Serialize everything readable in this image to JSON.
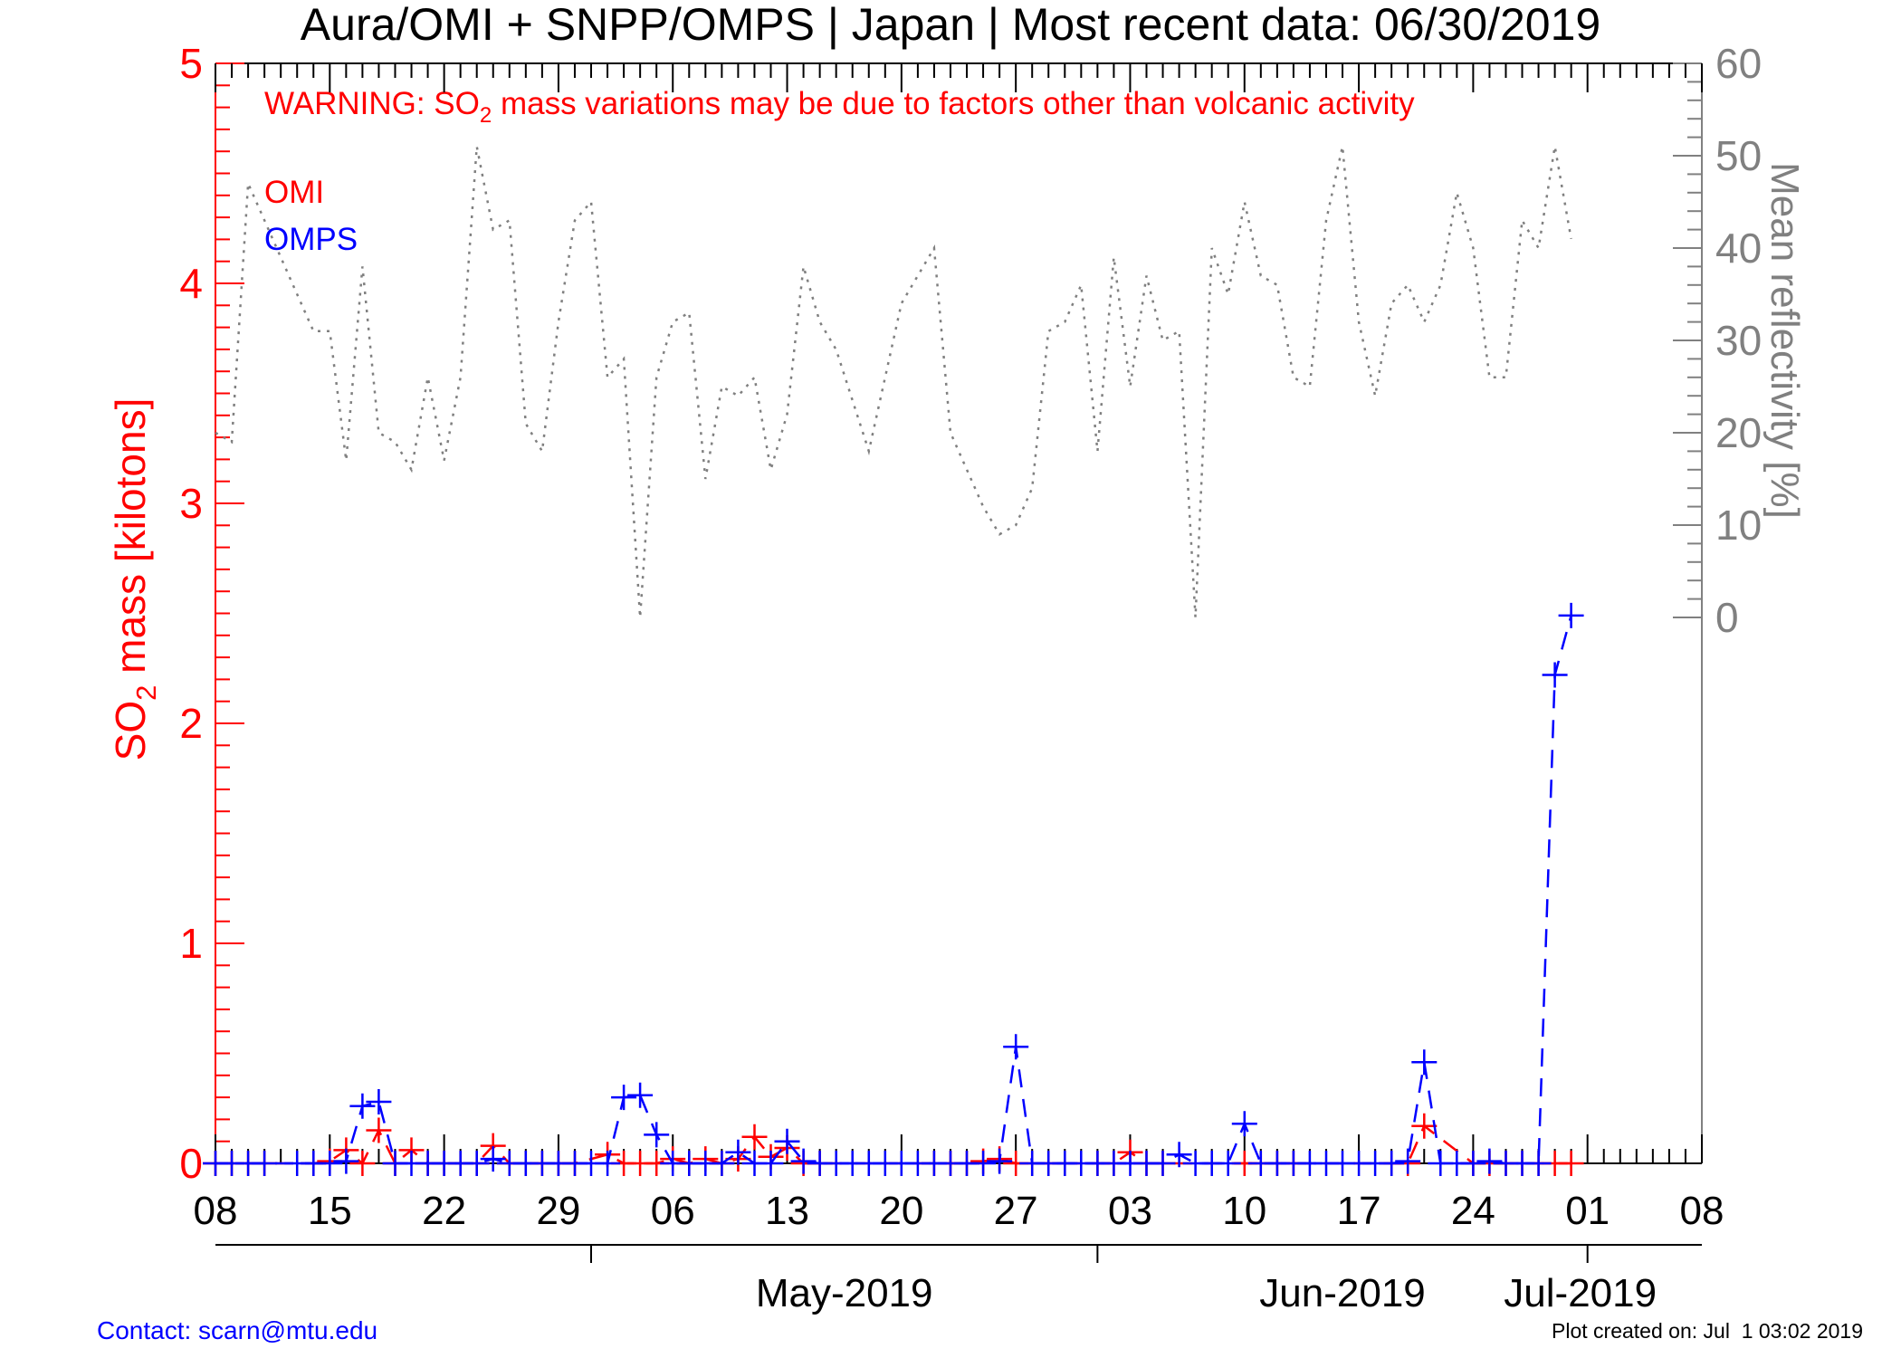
{
  "chart_data": {
    "type": "line",
    "title": "Aura/OMI + SNPP/OMPS | Japan | Most recent data: 06/30/2019",
    "warning": {
      "prefix": "WARNING: SO",
      "subscript": "2",
      "suffix": " mass variations may be due to factors other than volcanic activity"
    },
    "left_axis": {
      "label_prefix": "SO",
      "label_subscript": "2",
      "label_suffix": " mass [kilotons]",
      "ylim": [
        0,
        5
      ],
      "ticks": [
        "0",
        "1",
        "2",
        "3",
        "4",
        "5"
      ]
    },
    "right_axis": {
      "label": "Mean reflectivity [%]",
      "ylim": [
        0,
        60
      ],
      "ticks": [
        "0",
        "10",
        "20",
        "30",
        "40",
        "50",
        "60"
      ]
    },
    "x_axis": {
      "day_ticks": [
        "08",
        "15",
        "22",
        "29",
        "06",
        "13",
        "20",
        "27",
        "03",
        "10",
        "17",
        "24",
        "01",
        "08"
      ],
      "month_labels": [
        "May-2019",
        "Jun-2019",
        "Jul-2019"
      ]
    },
    "legend": [
      "OMI",
      "OMPS"
    ],
    "colors": {
      "omi": "#ff0000",
      "omps": "#0000ff",
      "reflectivity": "#808080",
      "axis": "#000000"
    },
    "series": [
      {
        "name": "OMI",
        "x": [
          "2019-04-08",
          "2019-04-09",
          "2019-04-10",
          "2019-04-11",
          "2019-04-14",
          "2019-04-15",
          "2019-04-16",
          "2019-04-17",
          "2019-04-18",
          "2019-04-19",
          "2019-04-20",
          "2019-04-21",
          "2019-04-22",
          "2019-04-23",
          "2019-04-24",
          "2019-04-25",
          "2019-04-26",
          "2019-04-27",
          "2019-04-28",
          "2019-04-29",
          "2019-04-30",
          "2019-05-02",
          "2019-05-03",
          "2019-05-04",
          "2019-05-05",
          "2019-05-06",
          "2019-05-07",
          "2019-05-08",
          "2019-05-09",
          "2019-05-10",
          "2019-05-11",
          "2019-05-12",
          "2019-05-13",
          "2019-05-14",
          "2019-05-15",
          "2019-05-22",
          "2019-05-23",
          "2019-05-24",
          "2019-05-25",
          "2019-05-26",
          "2019-05-27",
          "2019-05-28",
          "2019-05-29",
          "2019-05-30",
          "2019-06-01",
          "2019-06-02",
          "2019-06-03",
          "2019-06-04",
          "2019-06-05",
          "2019-06-10",
          "2019-06-11",
          "2019-06-12",
          "2019-06-13",
          "2019-06-19",
          "2019-06-20",
          "2019-06-21",
          "2019-06-24",
          "2019-06-25",
          "2019-06-26",
          "2019-06-27",
          "2019-06-28",
          "2019-06-29",
          "2019-06-30"
        ],
        "values": [
          0.0,
          0.0,
          0.0,
          0.0,
          0.0,
          0.01,
          0.06,
          0.0,
          0.15,
          0.0,
          0.06,
          0.0,
          0.0,
          0.0,
          0.0,
          0.08,
          0.0,
          0.0,
          0.0,
          0.0,
          0.0,
          0.04,
          0.0,
          0.0,
          0.0,
          0.02,
          0.0,
          0.02,
          0.0,
          0.02,
          0.12,
          0.03,
          0.07,
          0.0,
          0.0,
          0.0,
          0.0,
          0.0,
          0.01,
          0.02,
          0.0,
          0.0,
          0.0,
          0.0,
          0.0,
          0.0,
          0.05,
          0.0,
          0.0,
          0.0,
          0.0,
          0.0,
          0.0,
          0.0,
          0.0,
          0.17,
          0.0,
          0.0,
          0.0,
          0.0,
          0.0,
          0.0,
          0.0
        ]
      },
      {
        "name": "OMPS",
        "x": [
          "2019-04-08",
          "2019-04-09",
          "2019-04-10",
          "2019-04-11",
          "2019-04-13",
          "2019-04-14",
          "2019-04-15",
          "2019-04-16",
          "2019-04-17",
          "2019-04-18",
          "2019-04-19",
          "2019-04-20",
          "2019-04-21",
          "2019-04-22",
          "2019-04-23",
          "2019-04-24",
          "2019-04-25",
          "2019-04-26",
          "2019-04-27",
          "2019-04-28",
          "2019-04-29",
          "2019-04-30",
          "2019-05-01",
          "2019-05-02",
          "2019-05-03",
          "2019-05-04",
          "2019-05-05",
          "2019-05-06",
          "2019-05-07",
          "2019-05-08",
          "2019-05-09",
          "2019-05-10",
          "2019-05-11",
          "2019-05-12",
          "2019-05-13",
          "2019-05-14",
          "2019-05-15",
          "2019-05-16",
          "2019-05-17",
          "2019-05-18",
          "2019-05-19",
          "2019-05-20",
          "2019-05-21",
          "2019-05-22",
          "2019-05-23",
          "2019-05-24",
          "2019-05-25",
          "2019-05-26",
          "2019-05-27",
          "2019-05-28",
          "2019-05-29",
          "2019-05-30",
          "2019-05-31",
          "2019-06-01",
          "2019-06-02",
          "2019-06-03",
          "2019-06-04",
          "2019-06-05",
          "2019-06-06",
          "2019-06-07",
          "2019-06-08",
          "2019-06-09",
          "2019-06-10",
          "2019-06-11",
          "2019-06-12",
          "2019-06-13",
          "2019-06-14",
          "2019-06-15",
          "2019-06-16",
          "2019-06-17",
          "2019-06-18",
          "2019-06-19",
          "2019-06-20",
          "2019-06-21",
          "2019-06-22",
          "2019-06-23",
          "2019-06-24",
          "2019-06-25",
          "2019-06-26",
          "2019-06-27",
          "2019-06-28",
          "2019-06-29",
          "2019-06-30"
        ],
        "values": [
          0.0,
          0.0,
          0.0,
          0.0,
          0.0,
          0.0,
          0.0,
          0.01,
          0.26,
          0.28,
          0.0,
          0.0,
          0.0,
          0.0,
          0.0,
          0.0,
          0.02,
          0.0,
          0.0,
          0.0,
          0.0,
          0.0,
          0.0,
          0.0,
          0.3,
          0.31,
          0.13,
          0.0,
          0.0,
          0.0,
          0.0,
          0.05,
          0.0,
          0.0,
          0.1,
          0.01,
          0.0,
          0.0,
          0.0,
          0.0,
          0.0,
          0.0,
          0.0,
          0.0,
          0.0,
          0.0,
          0.0,
          0.01,
          0.53,
          0.0,
          0.0,
          0.0,
          0.0,
          0.0,
          0.0,
          0.0,
          0.0,
          0.0,
          0.04,
          0.0,
          0.0,
          0.0,
          0.18,
          0.0,
          0.0,
          0.0,
          0.0,
          0.0,
          0.0,
          0.0,
          0.0,
          0.0,
          0.01,
          0.46,
          0.0,
          0.0,
          0.0,
          0.01,
          0.0,
          0.0,
          0.0,
          2.22,
          2.49
        ]
      },
      {
        "name": "Mean reflectivity",
        "axis": "right",
        "x": [
          "2019-04-08",
          "2019-04-09",
          "2019-04-10",
          "2019-04-13",
          "2019-04-14",
          "2019-04-15",
          "2019-04-16",
          "2019-04-17",
          "2019-04-18",
          "2019-04-19",
          "2019-04-20",
          "2019-04-21",
          "2019-04-22",
          "2019-04-23",
          "2019-04-24",
          "2019-04-25",
          "2019-04-26",
          "2019-04-27",
          "2019-04-28",
          "2019-04-29",
          "2019-04-30",
          "2019-05-01",
          "2019-05-02",
          "2019-05-03",
          "2019-05-04",
          "2019-05-05",
          "2019-05-06",
          "2019-05-07",
          "2019-05-08",
          "2019-05-09",
          "2019-05-10",
          "2019-05-11",
          "2019-05-12",
          "2019-05-13",
          "2019-05-14",
          "2019-05-15",
          "2019-05-16",
          "2019-05-18",
          "2019-05-19",
          "2019-05-20",
          "2019-05-22",
          "2019-05-23",
          "2019-05-25",
          "2019-05-26",
          "2019-05-27",
          "2019-05-28",
          "2019-05-29",
          "2019-05-30",
          "2019-05-31",
          "2019-06-01",
          "2019-06-02",
          "2019-06-03",
          "2019-06-04",
          "2019-06-05",
          "2019-06-06",
          "2019-06-07",
          "2019-06-08",
          "2019-06-09",
          "2019-06-10",
          "2019-06-11",
          "2019-06-12",
          "2019-06-13",
          "2019-06-14",
          "2019-06-15",
          "2019-06-16",
          "2019-06-17",
          "2019-06-18",
          "2019-06-19",
          "2019-06-20",
          "2019-06-21",
          "2019-06-22",
          "2019-06-23",
          "2019-06-24",
          "2019-06-25",
          "2019-06-26",
          "2019-06-27",
          "2019-06-28",
          "2019-06-29",
          "2019-06-30"
        ],
        "values": [
          20,
          19,
          47,
          35,
          31,
          31,
          17,
          38,
          20,
          19,
          16,
          26,
          17,
          26,
          51,
          42,
          43,
          21,
          18,
          32,
          43,
          45,
          26,
          28,
          0,
          26,
          32,
          33,
          15,
          25,
          24,
          26,
          16,
          22,
          38,
          32,
          29,
          18,
          26,
          34,
          40,
          20,
          12,
          9,
          10,
          14,
          31,
          32,
          36,
          18,
          39,
          25,
          37,
          30,
          31,
          0,
          40,
          35,
          45,
          37,
          36,
          26,
          25,
          43,
          51,
          32,
          24,
          34,
          36,
          32,
          36,
          46,
          40,
          26,
          26,
          43,
          40,
          51,
          41
        ]
      }
    ]
  },
  "footer": {
    "contact": "Contact: scarn@mtu.edu",
    "created": "Plot created on: Jul  1 03:02 2019"
  }
}
